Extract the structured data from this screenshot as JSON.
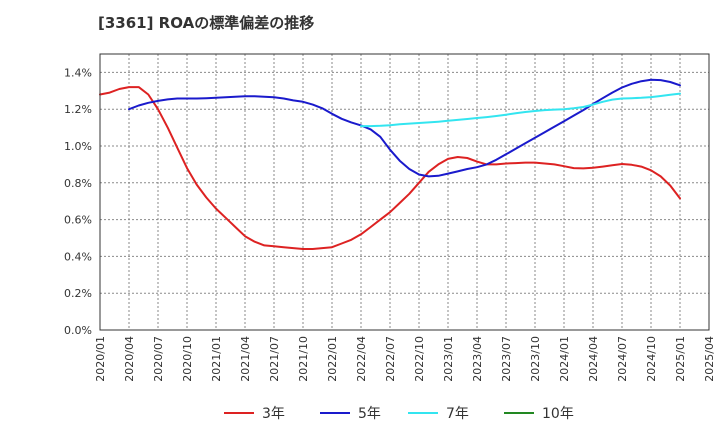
{
  "chart_data": {
    "type": "line",
    "title": "[3361]  ROAの標準偏差の推移",
    "xlabel": "",
    "ylabel": "",
    "ylim": [
      0,
      1.5
    ],
    "y_ticks": [
      0,
      0.2,
      0.4,
      0.6,
      0.8,
      1.0,
      1.2,
      1.4
    ],
    "y_tick_labels": [
      "0.0%",
      "0.2%",
      "0.4%",
      "0.6%",
      "0.8%",
      "1.0%",
      "1.2%",
      "1.4%"
    ],
    "x_tick_labels": [
      "2020/01",
      "2020/04",
      "2020/07",
      "2020/10",
      "2021/01",
      "2021/04",
      "2021/07",
      "2021/10",
      "2022/01",
      "2022/04",
      "2022/07",
      "2022/10",
      "2023/01",
      "2023/04",
      "2023/07",
      "2023/10",
      "2024/01",
      "2024/04",
      "2024/07",
      "2024/10",
      "2025/01",
      "2025/04"
    ],
    "grid": true,
    "legend_position": "bottom",
    "series": [
      {
        "name": "3年",
        "color": "#dd2222",
        "points": [
          [
            "2020/01",
            1.28
          ],
          [
            "2020/02",
            1.29
          ],
          [
            "2020/03",
            1.31
          ],
          [
            "2020/04",
            1.32
          ],
          [
            "2020/05",
            1.32
          ],
          [
            "2020/06",
            1.28
          ],
          [
            "2020/07",
            1.2
          ],
          [
            "2020/08",
            1.1
          ],
          [
            "2020/09",
            0.99
          ],
          [
            "2020/10",
            0.88
          ],
          [
            "2020/11",
            0.79
          ],
          [
            "2020/12",
            0.72
          ],
          [
            "2021/01",
            0.66
          ],
          [
            "2021/02",
            0.61
          ],
          [
            "2021/03",
            0.56
          ],
          [
            "2021/04",
            0.51
          ],
          [
            "2021/05",
            0.48
          ],
          [
            "2021/06",
            0.46
          ],
          [
            "2021/07",
            0.455
          ],
          [
            "2021/08",
            0.45
          ],
          [
            "2021/09",
            0.445
          ],
          [
            "2021/10",
            0.44
          ],
          [
            "2021/11",
            0.44
          ],
          [
            "2021/12",
            0.445
          ],
          [
            "2022/01",
            0.45
          ],
          [
            "2022/02",
            0.47
          ],
          [
            "2022/03",
            0.49
          ],
          [
            "2022/04",
            0.52
          ],
          [
            "2022/05",
            0.56
          ],
          [
            "2022/06",
            0.6
          ],
          [
            "2022/07",
            0.64
          ],
          [
            "2022/08",
            0.69
          ],
          [
            "2022/09",
            0.74
          ],
          [
            "2022/10",
            0.8
          ],
          [
            "2022/11",
            0.86
          ],
          [
            "2022/12",
            0.9
          ],
          [
            "2023/01",
            0.93
          ],
          [
            "2023/02",
            0.94
          ],
          [
            "2023/03",
            0.935
          ],
          [
            "2023/04",
            0.915
          ],
          [
            "2023/05",
            0.9
          ],
          [
            "2023/06",
            0.9
          ],
          [
            "2023/07",
            0.905
          ],
          [
            "2023/08",
            0.907
          ],
          [
            "2023/09",
            0.91
          ],
          [
            "2023/10",
            0.91
          ],
          [
            "2023/11",
            0.905
          ],
          [
            "2023/12",
            0.9
          ],
          [
            "2024/01",
            0.89
          ],
          [
            "2024/02",
            0.88
          ],
          [
            "2024/03",
            0.878
          ],
          [
            "2024/04",
            0.882
          ],
          [
            "2024/05",
            0.888
          ],
          [
            "2024/06",
            0.895
          ],
          [
            "2024/07",
            0.902
          ],
          [
            "2024/08",
            0.898
          ],
          [
            "2024/09",
            0.888
          ],
          [
            "2024/10",
            0.868
          ],
          [
            "2024/11",
            0.835
          ],
          [
            "2024/12",
            0.785
          ],
          [
            "2025/01",
            0.715
          ]
        ]
      },
      {
        "name": "5年",
        "color": "#1a1acc",
        "points": [
          [
            "2020/04",
            1.2
          ],
          [
            "2020/05",
            1.22
          ],
          [
            "2020/06",
            1.235
          ],
          [
            "2020/07",
            1.245
          ],
          [
            "2020/08",
            1.253
          ],
          [
            "2020/09",
            1.258
          ],
          [
            "2020/10",
            1.258
          ],
          [
            "2020/11",
            1.258
          ],
          [
            "2020/12",
            1.26
          ],
          [
            "2021/01",
            1.262
          ],
          [
            "2021/02",
            1.265
          ],
          [
            "2021/03",
            1.268
          ],
          [
            "2021/04",
            1.27
          ],
          [
            "2021/05",
            1.27
          ],
          [
            "2021/06",
            1.268
          ],
          [
            "2021/07",
            1.265
          ],
          [
            "2021/08",
            1.258
          ],
          [
            "2021/09",
            1.248
          ],
          [
            "2021/10",
            1.24
          ],
          [
            "2021/11",
            1.225
          ],
          [
            "2021/12",
            1.205
          ],
          [
            "2022/01",
            1.175
          ],
          [
            "2022/02",
            1.148
          ],
          [
            "2022/03",
            1.128
          ],
          [
            "2022/04",
            1.112
          ],
          [
            "2022/05",
            1.09
          ],
          [
            "2022/06",
            1.05
          ],
          [
            "2022/07",
            0.98
          ],
          [
            "2022/08",
            0.92
          ],
          [
            "2022/09",
            0.875
          ],
          [
            "2022/10",
            0.845
          ],
          [
            "2022/11",
            0.835
          ],
          [
            "2022/12",
            0.838
          ],
          [
            "2023/01",
            0.85
          ],
          [
            "2023/02",
            0.862
          ],
          [
            "2023/03",
            0.875
          ],
          [
            "2023/04",
            0.885
          ],
          [
            "2023/05",
            0.9
          ],
          [
            "2023/06",
            0.925
          ],
          [
            "2023/07",
            0.955
          ],
          [
            "2023/08",
            0.985
          ],
          [
            "2023/09",
            1.015
          ],
          [
            "2023/10",
            1.045
          ],
          [
            "2023/11",
            1.075
          ],
          [
            "2023/12",
            1.105
          ],
          [
            "2024/01",
            1.135
          ],
          [
            "2024/02",
            1.165
          ],
          [
            "2024/03",
            1.195
          ],
          [
            "2024/04",
            1.228
          ],
          [
            "2024/05",
            1.26
          ],
          [
            "2024/06",
            1.29
          ],
          [
            "2024/07",
            1.318
          ],
          [
            "2024/08",
            1.338
          ],
          [
            "2024/09",
            1.352
          ],
          [
            "2024/10",
            1.36
          ],
          [
            "2024/11",
            1.358
          ],
          [
            "2024/12",
            1.348
          ],
          [
            "2025/01",
            1.33
          ]
        ]
      },
      {
        "name": "7年",
        "color": "#33e5f0",
        "points": [
          [
            "2022/04",
            1.108
          ],
          [
            "2022/05",
            1.108
          ],
          [
            "2022/06",
            1.11
          ],
          [
            "2022/07",
            1.113
          ],
          [
            "2022/08",
            1.118
          ],
          [
            "2022/09",
            1.122
          ],
          [
            "2022/10",
            1.125
          ],
          [
            "2022/11",
            1.128
          ],
          [
            "2022/12",
            1.132
          ],
          [
            "2023/01",
            1.137
          ],
          [
            "2023/02",
            1.142
          ],
          [
            "2023/03",
            1.147
          ],
          [
            "2023/04",
            1.152
          ],
          [
            "2023/05",
            1.157
          ],
          [
            "2023/06",
            1.163
          ],
          [
            "2023/07",
            1.17
          ],
          [
            "2023/08",
            1.178
          ],
          [
            "2023/09",
            1.185
          ],
          [
            "2023/10",
            1.19
          ],
          [
            "2023/11",
            1.195
          ],
          [
            "2023/12",
            1.198
          ],
          [
            "2024/01",
            1.2
          ],
          [
            "2024/02",
            1.205
          ],
          [
            "2024/03",
            1.212
          ],
          [
            "2024/04",
            1.225
          ],
          [
            "2024/05",
            1.24
          ],
          [
            "2024/06",
            1.252
          ],
          [
            "2024/07",
            1.258
          ],
          [
            "2024/08",
            1.26
          ],
          [
            "2024/09",
            1.262
          ],
          [
            "2024/10",
            1.266
          ],
          [
            "2024/11",
            1.272
          ],
          [
            "2024/12",
            1.278
          ],
          [
            "2025/01",
            1.285
          ]
        ]
      },
      {
        "name": "10年",
        "color": "#228822",
        "points": []
      }
    ]
  }
}
